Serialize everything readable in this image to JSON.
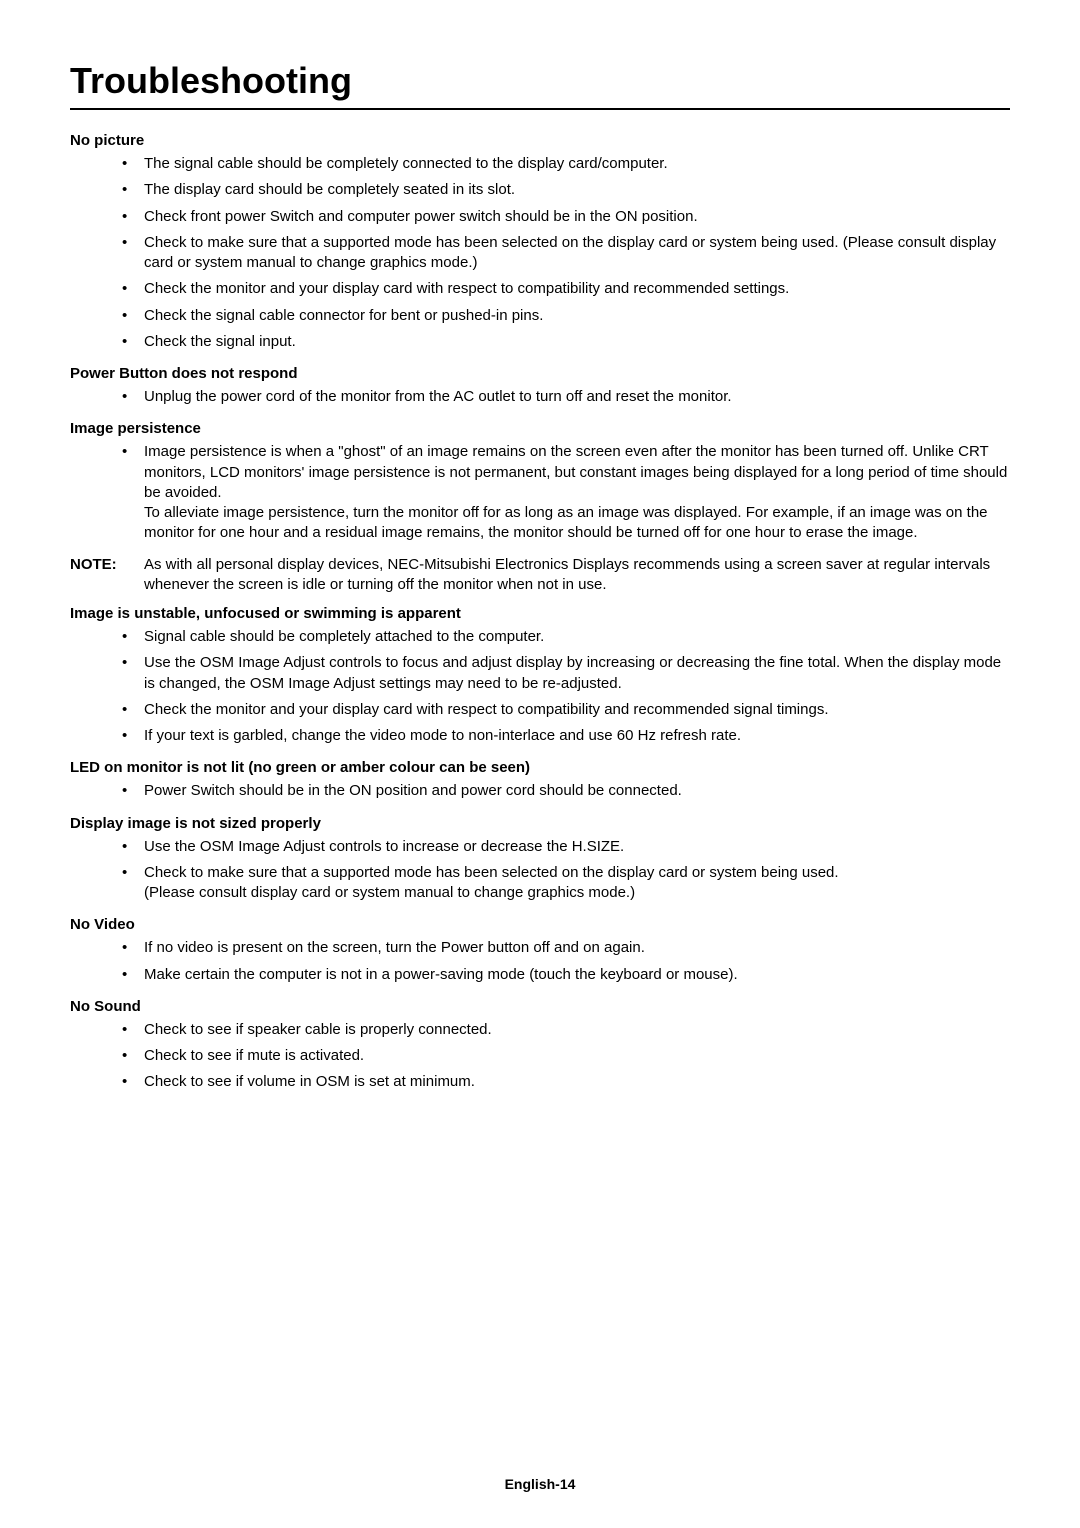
{
  "title": "Troubleshooting",
  "sections": [
    {
      "heading": "No picture",
      "items": [
        {
          "text": "The signal cable should be completely connected to the display card/computer."
        },
        {
          "text": "The display card should be completely seated in its slot."
        },
        {
          "text": "Check front power Switch and computer power switch should be in the ON position."
        },
        {
          "text": "Check to make sure that a supported mode has been selected on the display card or system being used. (Please consult display card or system manual to change graphics mode.)"
        },
        {
          "text": "Check the monitor and your display card with respect to compatibility and recommended settings."
        },
        {
          "text": "Check the signal cable connector for bent or pushed-in pins."
        },
        {
          "text": "Check the signal input."
        }
      ]
    },
    {
      "heading": "Power Button does not respond",
      "items": [
        {
          "text": "Unplug the power cord of the monitor from the AC outlet to turn off and reset the monitor."
        }
      ]
    },
    {
      "heading": "Image persistence",
      "items": [
        {
          "text": "Image persistence is when a \"ghost\" of an image remains on the screen even after the monitor has been turned off. Unlike CRT monitors, LCD monitors' image persistence is not permanent, but constant images being displayed for a long period of time should be avoided.",
          "sub": "To alleviate image persistence, turn the monitor off for as long as an image was displayed. For example, if an image was on the monitor for one hour and a residual image remains, the monitor should be turned off for one hour to erase the image."
        }
      ]
    }
  ],
  "note": {
    "label": "NOTE:",
    "text": "As with all personal display devices, NEC-Mitsubishi Electronics Displays recommends using a screen saver at regular intervals whenever the screen is idle or turning off the monitor when not in use."
  },
  "sections2": [
    {
      "heading": "Image is unstable, unfocused or swimming is apparent",
      "items": [
        {
          "text": "Signal cable should be completely attached to the computer."
        },
        {
          "text": "Use the OSM Image Adjust controls to focus and adjust display by increasing or decreasing the fine total. When the display mode is changed, the OSM Image Adjust settings may need to be re-adjusted."
        },
        {
          "text": "Check the monitor and your display card with respect to compatibility and recommended signal timings."
        },
        {
          "text": "If your text is garbled, change the video mode to non-interlace and use 60 Hz refresh rate."
        }
      ]
    },
    {
      "heading": "LED on monitor is not lit (no green or amber colour can be seen)",
      "items": [
        {
          "text": "Power Switch should be in the ON position and power cord should be connected."
        }
      ]
    },
    {
      "heading": "Display image is not sized properly",
      "items": [
        {
          "text": "Use the OSM Image Adjust controls to increase or decrease the H.SIZE."
        },
        {
          "text": "Check to make sure that a supported mode has been selected on the display card or system being used.",
          "sub": "(Please consult display card or system manual to change graphics mode.)"
        }
      ]
    },
    {
      "heading": "No Video",
      "items": [
        {
          "text": "If no video is present on the screen, turn the Power button off and on again."
        },
        {
          "text": "Make certain the computer is not in a power-saving mode (touch the keyboard or mouse)."
        }
      ]
    },
    {
      "heading": "No Sound",
      "items": [
        {
          "text": "Check to see if speaker cable is properly connected."
        },
        {
          "text": "Check to see if mute is activated."
        },
        {
          "text": "Check to see if volume in OSM is set at minimum."
        }
      ]
    }
  ],
  "footer": "English-14"
}
